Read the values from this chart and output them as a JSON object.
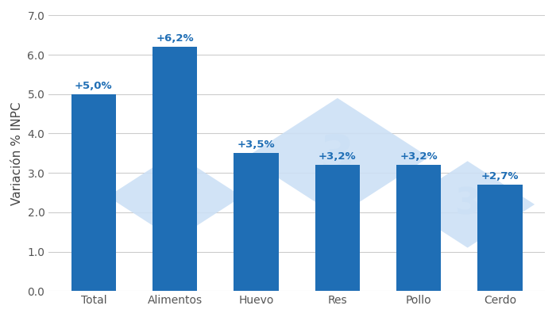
{
  "categories": [
    "Total",
    "Alimentos",
    "Huevo",
    "Res",
    "Pollo",
    "Cerdo"
  ],
  "values": [
    5.0,
    6.2,
    3.5,
    3.2,
    3.2,
    2.7
  ],
  "labels": [
    "+5,0%",
    "+6,2%",
    "+3,5%",
    "+3,2%",
    "+3,2%",
    "+2,7%"
  ],
  "bar_color": "#1F6EB5",
  "ylabel": "Variación % INPC",
  "ylim": [
    0,
    7.0
  ],
  "yticks": [
    0,
    1.0,
    2.0,
    3.0,
    4.0,
    5.0,
    6.0,
    7.0
  ],
  "background_color": "#ffffff",
  "grid_color": "#cccccc",
  "label_color": "#1F6EB5",
  "label_fontsize": 9.5,
  "ylabel_fontsize": 11,
  "tick_fontsize": 10,
  "watermark_color": "#cce0f5",
  "watermark_alpha": 0.85
}
